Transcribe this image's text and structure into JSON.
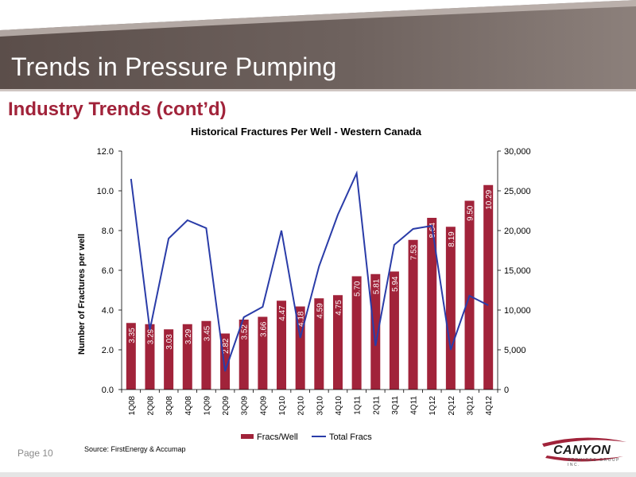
{
  "slide": {
    "title": "Trends in Pressure Pumping",
    "subtitle": "Industry Trends (cont’d)",
    "page": "Page 10",
    "source": "Source: FirstEnergy & Accumap",
    "logo": {
      "name": "CANYON",
      "tagline": "SERVICES GROUP INC."
    }
  },
  "colors": {
    "banner_dark": "#5a4d49",
    "banner_light": "#b8aca7",
    "bar": "#a1233a",
    "line": "#2a3ca8",
    "subtitle": "#a1233a"
  },
  "chart_data": {
    "type": "bar",
    "title": "Historical Fractures Per Well - Western Canada",
    "ylabel": "Number of Fractures per well",
    "y2label": "",
    "categories": [
      "1Q08",
      "2Q08",
      "3Q08",
      "4Q08",
      "1Q09",
      "2Q09",
      "3Q09",
      "4Q09",
      "1Q10",
      "2Q10",
      "3Q10",
      "4Q10",
      "1Q11",
      "2Q11",
      "3Q11",
      "4Q11",
      "1Q12",
      "2Q12",
      "3Q12",
      "4Q12"
    ],
    "ylim": [
      0,
      12
    ],
    "y2lim": [
      0,
      30000
    ],
    "yticks": [
      "0.0",
      "2.0",
      "4.0",
      "6.0",
      "8.0",
      "10.0",
      "12.0"
    ],
    "y2ticks": [
      "0",
      "5,000",
      "10,000",
      "15,000",
      "20,000",
      "25,000",
      "30,000"
    ],
    "legend_position": "bottom",
    "series": [
      {
        "name": "Fracs/Well",
        "type": "bar",
        "axis": "left",
        "values": [
          3.35,
          3.29,
          3.03,
          3.29,
          3.45,
          2.82,
          3.52,
          3.66,
          4.47,
          4.18,
          4.59,
          4.75,
          5.7,
          5.81,
          5.94,
          7.53,
          8.64,
          8.19,
          9.5,
          10.29
        ],
        "labels": [
          "3.35",
          "3.29",
          "3.03",
          "3.29",
          "3.45",
          "2.82",
          "3.52",
          "3.66",
          "4.47",
          "4.18",
          "4.59",
          "4.75",
          "5.70",
          "5.81",
          "5.94",
          "7.53",
          "8.64",
          "8.19",
          "9.50",
          "10.29"
        ]
      },
      {
        "name": "Total Fracs",
        "type": "line",
        "axis": "right",
        "values": [
          26500,
          7500,
          19000,
          21300,
          20300,
          2300,
          9100,
          10400,
          20000,
          6500,
          15500,
          22000,
          27200,
          5500,
          18200,
          20200,
          20600,
          5000,
          11800,
          10600
        ]
      }
    ]
  }
}
